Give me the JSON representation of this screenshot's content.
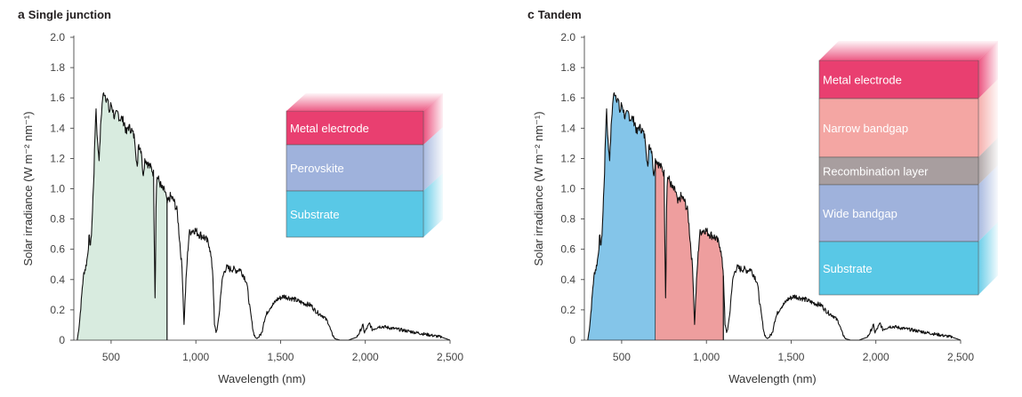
{
  "panels": [
    {
      "letter": "a",
      "title": "Single junction",
      "layers": [
        {
          "label": "Metal electrode",
          "color": "#e93f70"
        },
        {
          "label": "Perovskite",
          "color": "#9fb2dc"
        },
        {
          "label": "Substrate",
          "color": "#59c8e6"
        }
      ]
    },
    {
      "letter": "c",
      "title": "Tandem",
      "layers": [
        {
          "label": "Metal electrode",
          "color": "#e93f70"
        },
        {
          "label": "Narrow bandgap",
          "color": "#f4a6a3"
        },
        {
          "label": "Recombination layer",
          "color": "#a89e9f"
        },
        {
          "label": "Wide bandgap",
          "color": "#9fb2dc"
        },
        {
          "label": "Substrate",
          "color": "#59c8e6"
        }
      ]
    }
  ],
  "chart_data": [
    {
      "type": "area",
      "title": "Single junction",
      "xlabel": "Wavelength (nm)",
      "ylabel": "Solar irradiance (W m⁻² nm⁻¹)",
      "xlim": [
        280,
        2500
      ],
      "ylim": [
        0,
        2.0
      ],
      "xticks": [
        500,
        1000,
        1500,
        2000,
        2500
      ],
      "xtick_labels": [
        "500",
        "1,000",
        "1,500",
        "2,000",
        "2,500"
      ],
      "yticks": [
        0,
        0.2,
        0.4,
        0.6,
        0.8,
        1.0,
        1.2,
        1.4,
        1.6,
        1.8,
        2.0
      ],
      "ytick_labels": [
        "0",
        "0.2",
        "0.4",
        "0.6",
        "0.8",
        "1.0",
        "1.2",
        "1.4",
        "1.6",
        "1.8",
        "2.0"
      ],
      "grid": false,
      "shaded_regions": [
        {
          "from": 300,
          "to": 830,
          "color": "#d8ebdf"
        }
      ],
      "spectrum": {
        "x": [
          300,
          310,
          320,
          330,
          340,
          350,
          360,
          370,
          380,
          390,
          400,
          410,
          420,
          430,
          440,
          450,
          460,
          470,
          480,
          490,
          500,
          510,
          520,
          530,
          540,
          550,
          560,
          570,
          580,
          590,
          600,
          620,
          640,
          656,
          660,
          680,
          687,
          700,
          720,
          740,
          750,
          760,
          765,
          770,
          780,
          800,
          820,
          830,
          850,
          870,
          890,
          900,
          920,
          930,
          940,
          950,
          960,
          970,
          990,
          1000,
          1020,
          1050,
          1080,
          1100,
          1110,
          1120,
          1130,
          1140,
          1150,
          1160,
          1170,
          1180,
          1200,
          1220,
          1240,
          1260,
          1270,
          1290,
          1300,
          1320,
          1340,
          1350,
          1360,
          1370,
          1390,
          1400,
          1420,
          1440,
          1460,
          1480,
          1500,
          1520,
          1550,
          1580,
          1600,
          1620,
          1650,
          1680,
          1700,
          1720,
          1750,
          1780,
          1800,
          1820,
          1850,
          1900,
          1950,
          1970,
          1985,
          1995,
          2010,
          2025,
          2040,
          2060,
          2080,
          2100,
          2150,
          2200,
          2250,
          2300,
          2350,
          2400,
          2450,
          2500
        ],
        "y": [
          0,
          0.08,
          0.2,
          0.35,
          0.45,
          0.48,
          0.55,
          0.68,
          0.62,
          0.85,
          1.15,
          1.55,
          1.3,
          1.2,
          1.45,
          1.6,
          1.64,
          1.6,
          1.58,
          1.5,
          1.56,
          1.52,
          1.47,
          1.49,
          1.5,
          1.46,
          1.47,
          1.45,
          1.43,
          1.36,
          1.41,
          1.39,
          1.33,
          1.1,
          1.3,
          1.25,
          1.08,
          1.2,
          1.16,
          1.13,
          1.1,
          0.2,
          0.9,
          1.08,
          1.06,
          1.0,
          0.98,
          0.9,
          0.95,
          0.92,
          0.85,
          0.72,
          0.45,
          0.1,
          0.35,
          0.55,
          0.7,
          0.72,
          0.73,
          0.72,
          0.7,
          0.68,
          0.63,
          0.45,
          0.1,
          0.05,
          0.1,
          0.2,
          0.35,
          0.42,
          0.46,
          0.48,
          0.47,
          0.47,
          0.46,
          0.47,
          0.45,
          0.41,
          0.38,
          0.2,
          0.05,
          0.02,
          0.01,
          0.02,
          0.05,
          0.12,
          0.18,
          0.22,
          0.24,
          0.27,
          0.28,
          0.29,
          0.28,
          0.27,
          0.26,
          0.25,
          0.24,
          0.23,
          0.2,
          0.18,
          0.16,
          0.12,
          0.05,
          0.01,
          0.0,
          0.0,
          0.02,
          0.06,
          0.1,
          0.05,
          0.08,
          0.11,
          0.07,
          0.08,
          0.09,
          0.09,
          0.08,
          0.07,
          0.06,
          0.05,
          0.04,
          0.03,
          0.02,
          0.0
        ]
      }
    },
    {
      "type": "area",
      "title": "Tandem",
      "xlabel": "Wavelength (nm)",
      "ylabel": "Solar irradiance (W m⁻² nm⁻¹)",
      "xlim": [
        280,
        2500
      ],
      "ylim": [
        0,
        2.0
      ],
      "xticks": [
        500,
        1000,
        1500,
        2000,
        2500
      ],
      "xtick_labels": [
        "500",
        "1,000",
        "1,500",
        "2,000",
        "2,500"
      ],
      "yticks": [
        0,
        0.2,
        0.4,
        0.6,
        0.8,
        1.0,
        1.2,
        1.4,
        1.6,
        1.8,
        2.0
      ],
      "ytick_labels": [
        "0",
        "0.2",
        "0.4",
        "0.6",
        "0.8",
        "1.0",
        "1.2",
        "1.4",
        "1.6",
        "1.8",
        "2.0"
      ],
      "grid": false,
      "shaded_regions": [
        {
          "from": 300,
          "to": 700,
          "color": "#84c5e9"
        },
        {
          "from": 700,
          "to": 1100,
          "color": "#ee9e9e"
        }
      ],
      "spectrum_same_as_panel": 0
    }
  ]
}
